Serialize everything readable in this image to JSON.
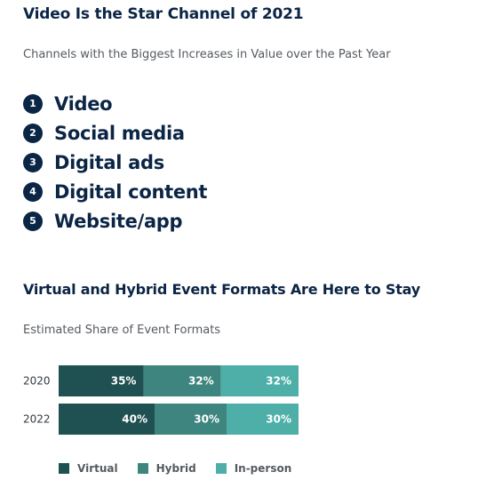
{
  "section1": {
    "title": "Video Is the Star Channel of 2021",
    "subtitle": "Channels with the Biggest Increases in Value over the Past Year",
    "ranks": [
      {
        "num": "1",
        "label": "Video"
      },
      {
        "num": "2",
        "label": "Social media"
      },
      {
        "num": "3",
        "label": "Digital ads"
      },
      {
        "num": "4",
        "label": "Digital content"
      },
      {
        "num": "5",
        "label": "Website/app"
      }
    ]
  },
  "section2": {
    "title": "Virtual and Hybrid Event Formats Are Here to Stay",
    "subtitle": "Estimated Share of Event Formats"
  },
  "colors": {
    "navy": "#0b2545",
    "virtual": "#1f5052",
    "hybrid": "#3e8580",
    "inperson": "#4eafa9"
  },
  "chart_data": {
    "type": "bar",
    "orientation": "horizontal",
    "stacked": true,
    "title": "Estimated Share of Event Formats",
    "categories": [
      "2020",
      "2022"
    ],
    "series": [
      {
        "name": "Virtual",
        "values": [
          35,
          40
        ],
        "labels": [
          "35%",
          "40%"
        ]
      },
      {
        "name": "Hybrid",
        "values": [
          32,
          30
        ],
        "labels": [
          "32%",
          "30%"
        ]
      },
      {
        "name": "In-person",
        "values": [
          32,
          30
        ],
        "labels": [
          "32%",
          "30%"
        ]
      }
    ],
    "legend_position": "bottom-left",
    "grid": false
  }
}
